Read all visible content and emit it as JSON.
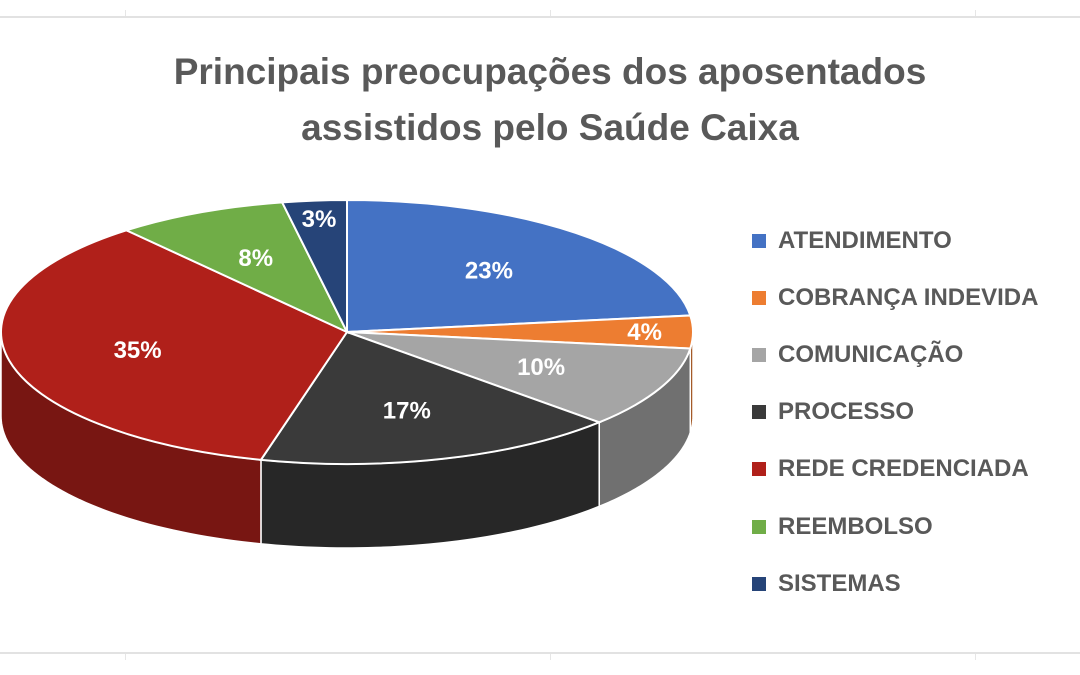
{
  "chart_data": {
    "type": "pie",
    "title": "Principais preocupações dos aposentados assistidos pelo Saúde Caixa",
    "legend_position": "right",
    "slices": [
      {
        "label": "ATENDIMENTO",
        "value": 23,
        "display": "23%",
        "color": "#4472C4"
      },
      {
        "label": "COBRANÇA INDEVIDA",
        "value": 4,
        "display": "4%",
        "color": "#ED7D31"
      },
      {
        "label": "COMUNICAÇÃO",
        "value": 10,
        "display": "10%",
        "color": "#A5A5A5"
      },
      {
        "label": "PROCESSO",
        "value": 17,
        "display": "17%",
        "color": "#3A3A3A"
      },
      {
        "label": "REDE CREDENCIADA",
        "value": 35,
        "display": "35%",
        "color": "#B0201A"
      },
      {
        "label": "REEMBOLSO",
        "value": 8,
        "display": "8%",
        "color": "#70AD47"
      },
      {
        "label": "SISTEMAS",
        "value": 3,
        "display": "3%",
        "color": "#264478"
      }
    ]
  }
}
